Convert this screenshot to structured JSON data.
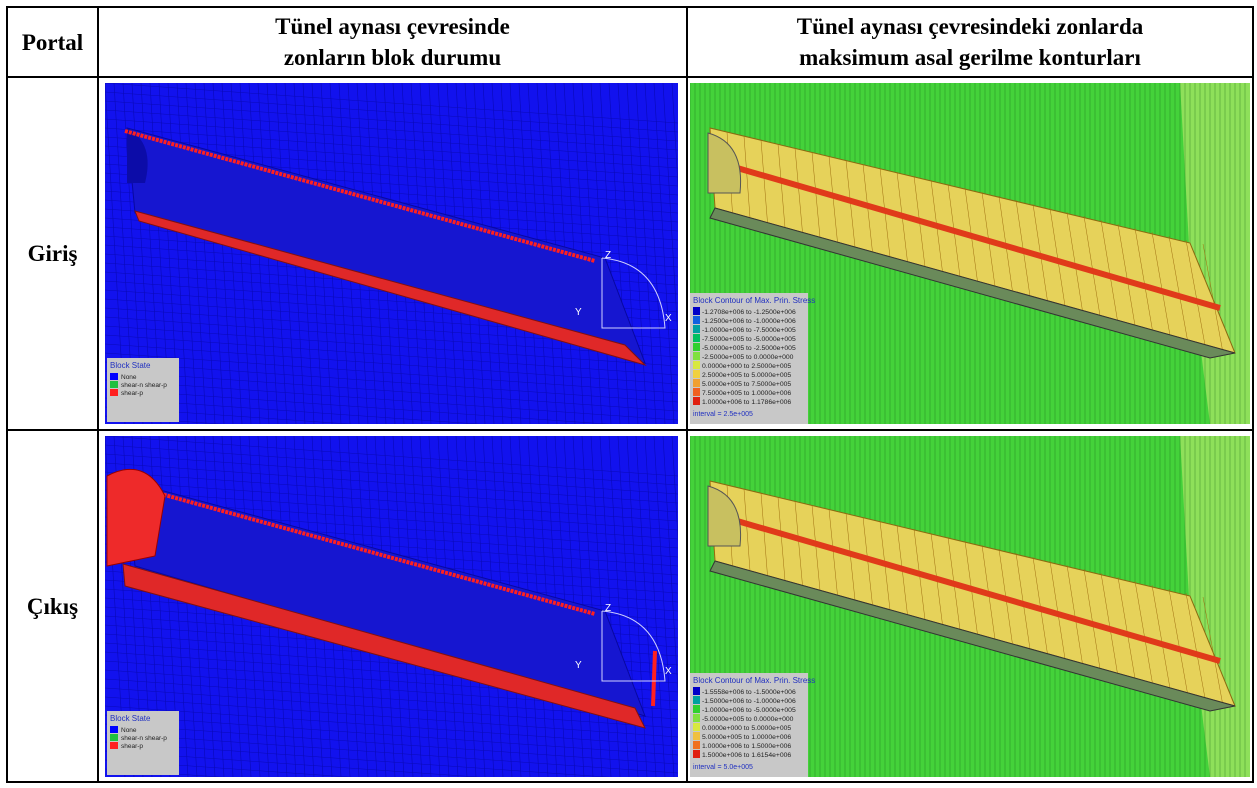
{
  "table": {
    "header": [
      "Portal",
      [
        "Tünel aynası çevresinde",
        "zonların blok durumu"
      ],
      [
        "Tünel aynası çevresindeki zonlarda",
        "maksimum asal gerilme konturları"
      ]
    ],
    "rows": [
      {
        "label": "Giriş",
        "block_state": {
          "style": "entry",
          "legend_title": "Block State",
          "axes": [
            "Z",
            "Y",
            "X"
          ],
          "entries": [
            {
              "label": "None",
              "color": "#0000ff"
            },
            {
              "label": "shear-n shear-p",
              "color": "#20c040"
            },
            {
              "label": "shear-p",
              "color": "#ff2020"
            }
          ]
        },
        "contour": {
          "legend_title": "Block Contour of Max. Prin. Stress",
          "interval": "interval = 2.5e+005",
          "entries": [
            {
              "label": "-1.2708e+006 to -1.2500e+006",
              "color": "#0000c8"
            },
            {
              "label": "-1.2500e+006 to -1.0000e+006",
              "color": "#1060e0"
            },
            {
              "label": "-1.0000e+006 to -7.5000e+005",
              "color": "#00a0a0"
            },
            {
              "label": "-7.5000e+005 to -5.0000e+005",
              "color": "#00c060"
            },
            {
              "label": "-5.0000e+005 to -2.5000e+005",
              "color": "#30d030"
            },
            {
              "label": "-2.5000e+005 to 0.0000e+000",
              "color": "#80e040"
            },
            {
              "label": "0.0000e+000 to 2.5000e+005",
              "color": "#d8e840"
            },
            {
              "label": "2.5000e+005 to 5.0000e+005",
              "color": "#f0d040"
            },
            {
              "label": "5.0000e+005 to 7.5000e+005",
              "color": "#f0a030"
            },
            {
              "label": "7.5000e+005 to 1.0000e+006",
              "color": "#f06020"
            },
            {
              "label": "1.0000e+006 to 1.1786e+006",
              "color": "#e02010"
            }
          ]
        }
      },
      {
        "label": "Çıkış",
        "block_state": {
          "style": "exit",
          "legend_title": "Block State",
          "axes": [
            "Z",
            "Y",
            "X"
          ],
          "entries": [
            {
              "label": "None",
              "color": "#0000ff"
            },
            {
              "label": "shear-n shear-p",
              "color": "#20c040"
            },
            {
              "label": "shear-p",
              "color": "#ff2020"
            }
          ]
        },
        "contour": {
          "legend_title": "Block Contour of Max. Prin. Stress",
          "interval": "interval = 5.0e+005",
          "entries": [
            {
              "label": "-1.5558e+006 to -1.5000e+006",
              "color": "#0000c8"
            },
            {
              "label": "-1.5000e+006 to -1.0000e+006",
              "color": "#00a0a0"
            },
            {
              "label": "-1.0000e+006 to -5.0000e+005",
              "color": "#30d030"
            },
            {
              "label": "-5.0000e+005 to 0.0000e+000",
              "color": "#80e040"
            },
            {
              "label": "0.0000e+000 to 5.0000e+005",
              "color": "#d8e840"
            },
            {
              "label": "5.0000e+005 to 1.0000e+006",
              "color": "#f0c040"
            },
            {
              "label": "1.0000e+006 to 1.5000e+006",
              "color": "#f07020"
            },
            {
              "label": "1.5000e+006 to 1.6154e+006",
              "color": "#e02010"
            }
          ]
        }
      }
    ]
  }
}
